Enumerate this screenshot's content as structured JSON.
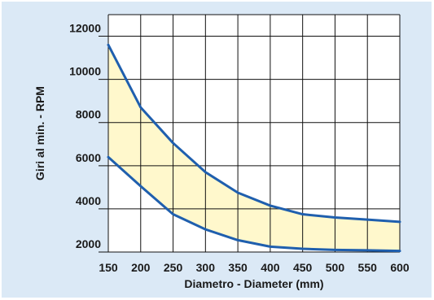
{
  "chart_data": {
    "type": "area",
    "title": "",
    "xlabel": "Diametro - Diameter (mm)",
    "ylabel": "Giri al min. - RPM",
    "x": [
      150,
      200,
      250,
      300,
      350,
      400,
      450,
      500,
      550,
      600
    ],
    "xticks": [
      "150",
      "200",
      "250",
      "300",
      "350",
      "400",
      "450",
      "500",
      "550",
      "600"
    ],
    "yticks": [
      "2000",
      "4000",
      "6000",
      "8000",
      "10000",
      "12000"
    ],
    "xlim": [
      150,
      600
    ],
    "ylim": [
      2000,
      13000
    ],
    "grid": true,
    "series": [
      {
        "values": [
          11600,
          8700,
          7050,
          5700,
          4750,
          4150,
          3750,
          3600,
          3500,
          3400
        ]
      },
      {
        "values": [
          6400,
          5050,
          3750,
          3050,
          2550,
          2250,
          2150,
          2100,
          2080,
          2050
        ]
      }
    ],
    "fill_between": true,
    "colors": {
      "line": "#1f5fae",
      "fill": "#fff8cc",
      "panel": "#dbe9f6",
      "plot": "#ffffff",
      "grid": "#111111"
    }
  }
}
